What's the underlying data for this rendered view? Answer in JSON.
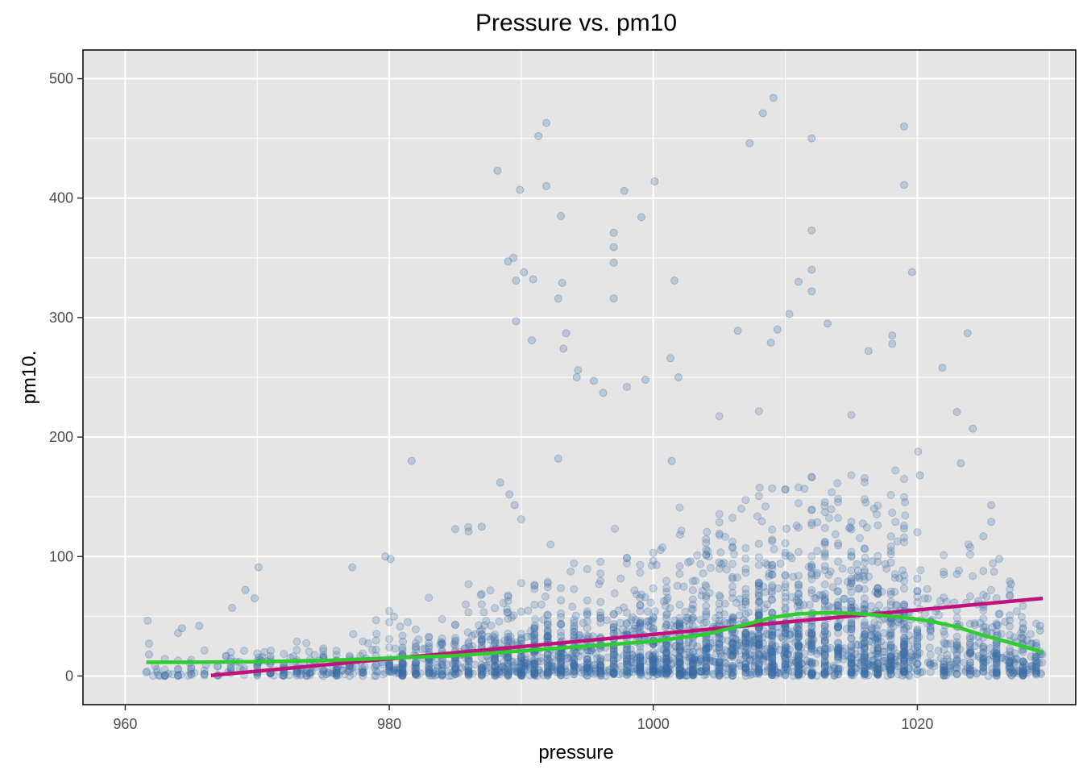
{
  "chart_data": {
    "type": "scatter",
    "title": "Pressure vs. pm10",
    "xlabel": "pressure",
    "ylabel": "pm10.",
    "xlim": [
      956.8,
      1032.0
    ],
    "ylim": [
      -24,
      524
    ],
    "x_ticks": [
      960,
      980,
      1000,
      1020
    ],
    "y_ticks": [
      0,
      100,
      200,
      300,
      400,
      500
    ],
    "grid": true,
    "legend": "none",
    "colors": {
      "panel": "#e5e5e5",
      "grid": "#ffffff",
      "points": "#3a6ea5",
      "linear_fit": "#c0127a",
      "loess_fit": "#2ecc2e"
    },
    "point_density": {
      "x_min": 961.5,
      "x_max": 1029.5,
      "description_free_profile_center": [
        [
          962,
          4
        ],
        [
          966,
          6
        ],
        [
          970,
          8
        ],
        [
          975,
          10
        ],
        [
          980,
          14
        ],
        [
          985,
          18
        ],
        [
          990,
          22
        ],
        [
          995,
          26
        ],
        [
          1000,
          30
        ],
        [
          1005,
          40
        ],
        [
          1010,
          48
        ],
        [
          1013,
          52
        ],
        [
          1016,
          50
        ],
        [
          1020,
          44
        ],
        [
          1024,
          34
        ],
        [
          1029,
          20
        ]
      ]
    },
    "outliers": [
      [
        988.2,
        423
      ],
      [
        991.3,
        452
      ],
      [
        991.9,
        463
      ],
      [
        991.9,
        410
      ],
      [
        989.9,
        407
      ],
      [
        993.0,
        385
      ],
      [
        997.8,
        406
      ],
      [
        999.1,
        384
      ],
      [
        1000.1,
        414
      ],
      [
        997.0,
        371
      ],
      [
        997.0,
        359
      ],
      [
        997.0,
        346
      ],
      [
        989.0,
        347
      ],
      [
        989.4,
        350
      ],
      [
        989.6,
        331
      ],
      [
        990.2,
        338
      ],
      [
        990.9,
        332
      ],
      [
        992.8,
        316
      ],
      [
        993.1,
        329
      ],
      [
        989.6,
        297
      ],
      [
        990.8,
        281
      ],
      [
        993.2,
        274
      ],
      [
        993.4,
        287
      ],
      [
        994.3,
        256
      ],
      [
        994.2,
        250
      ],
      [
        995.5,
        247
      ],
      [
        996.2,
        237
      ],
      [
        997.0,
        316
      ],
      [
        998.0,
        242
      ],
      [
        999.4,
        248
      ],
      [
        1001.6,
        331
      ],
      [
        1001.3,
        266
      ],
      [
        1001.9,
        250
      ],
      [
        1007.3,
        446
      ],
      [
        1008.3,
        471
      ],
      [
        1009.1,
        484
      ],
      [
        1012.0,
        450
      ],
      [
        1012.0,
        373
      ],
      [
        1012.0,
        340
      ],
      [
        1012.0,
        322
      ],
      [
        1011.0,
        330
      ],
      [
        1010.3,
        303
      ],
      [
        1019.0,
        460
      ],
      [
        1019.0,
        411
      ],
      [
        1019.6,
        338
      ],
      [
        1006.4,
        289
      ],
      [
        1008.9,
        279
      ],
      [
        1009.4,
        290
      ],
      [
        1013.2,
        295
      ],
      [
        1016.3,
        272
      ],
      [
        1018.1,
        285
      ],
      [
        1018.1,
        278
      ],
      [
        1021.9,
        258
      ],
      [
        1023.0,
        221
      ],
      [
        1023.8,
        287
      ],
      [
        1024.2,
        207
      ],
      [
        988.4,
        162
      ],
      [
        989.1,
        152
      ],
      [
        989.5,
        143
      ],
      [
        981.7,
        180
      ],
      [
        992.8,
        182
      ],
      [
        1001.4,
        180
      ],
      [
        1025.6,
        143
      ],
      [
        1020.2,
        168
      ],
      [
        1023.3,
        178
      ],
      [
        987.0,
        125
      ],
      [
        986.0,
        121
      ],
      [
        985.0,
        123
      ],
      [
        980.1,
        98
      ],
      [
        979.7,
        100
      ],
      [
        977.2,
        91
      ],
      [
        970.1,
        91
      ],
      [
        969.8,
        65
      ],
      [
        968.1,
        57
      ],
      [
        969.1,
        72
      ],
      [
        965.6,
        42
      ],
      [
        964.3,
        40
      ],
      [
        964.0,
        36
      ],
      [
        961.8,
        27
      ],
      [
        961.8,
        18
      ],
      [
        1029.3,
        42
      ],
      [
        1029.3,
        38
      ],
      [
        1027.9,
        32
      ],
      [
        1028.6,
        27
      ],
      [
        1027.1,
        77
      ],
      [
        1026.2,
        98
      ],
      [
        1025.0,
        117
      ],
      [
        1025.6,
        129
      ]
    ],
    "series": [
      {
        "kind": "linear",
        "x": [
          966.5,
          1029.5
        ],
        "y": [
          0.5,
          65
        ]
      },
      {
        "kind": "loess",
        "x": [
          961.6,
          965,
          970,
          975,
          980,
          985,
          990,
          995,
          1000,
          1004,
          1007,
          1009,
          1011,
          1013,
          1015,
          1017,
          1019,
          1021,
          1023,
          1025,
          1027,
          1029.5
        ],
        "y": [
          11.5,
          11.5,
          12,
          13,
          15,
          17,
          21,
          25,
          29,
          35,
          43,
          49,
          52,
          53,
          52.5,
          51,
          49,
          46,
          41,
          34,
          28,
          20
        ]
      }
    ]
  }
}
